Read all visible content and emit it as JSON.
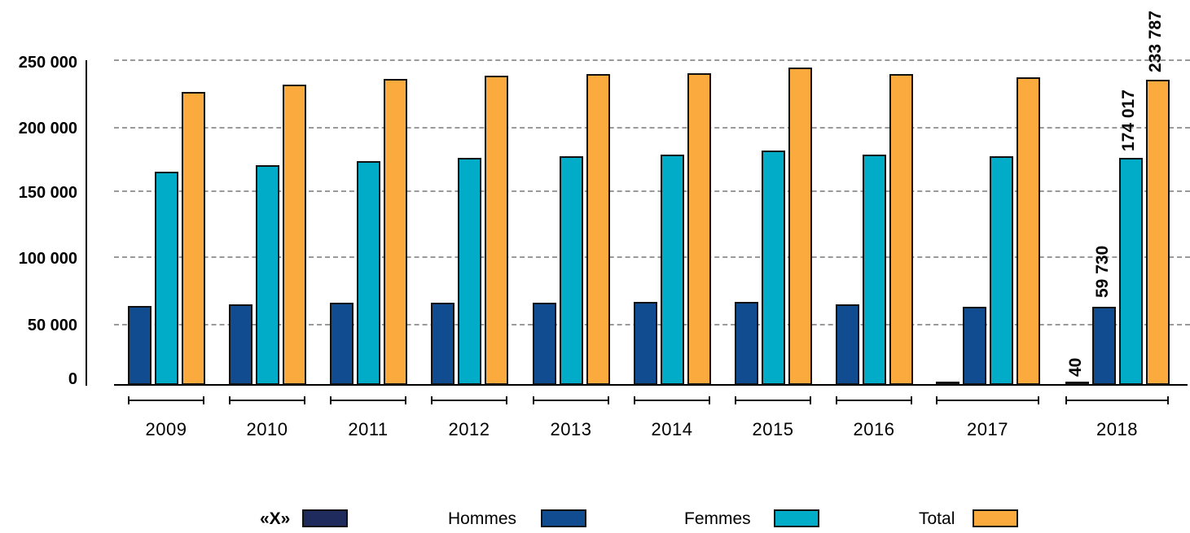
{
  "chart_data": {
    "type": "bar",
    "title": "",
    "xlabel": "",
    "ylabel": "",
    "ylim": [
      0,
      250000
    ],
    "y_ticks": [
      "0",
      "50 000",
      "100 000",
      "150 000",
      "200 000",
      "250 000"
    ],
    "grid": true,
    "legend_position": "bottom",
    "categories": [
      "2009",
      "2010",
      "2011",
      "2012",
      "2013",
      "2014",
      "2015",
      "2016",
      "2017",
      "2018"
    ],
    "series": [
      {
        "name": "«X»",
        "color": "#1f2b5c",
        "values": [
          null,
          null,
          null,
          null,
          null,
          null,
          null,
          null,
          1000,
          40
        ]
      },
      {
        "name": "Hommes",
        "color": "#104c8f",
        "values": [
          60500,
          61700,
          63000,
          63000,
          63000,
          63600,
          63600,
          61700,
          59900,
          59730
        ]
      },
      {
        "name": "Femmes",
        "color": "#00acc8",
        "values": [
          163300,
          168300,
          171400,
          173900,
          175200,
          176400,
          179600,
          176400,
          175200,
          174017
        ]
      },
      {
        "name": "Total",
        "color": "#fbab3d",
        "values": [
          224400,
          230000,
          234400,
          236900,
          238200,
          238800,
          243100,
          238200,
          235700,
          233787
        ]
      }
    ],
    "annotations": [
      {
        "category": "2018",
        "series": "«X»",
        "text": "40"
      },
      {
        "category": "2018",
        "series": "Hommes",
        "text": "59 730"
      },
      {
        "category": "2018",
        "series": "Femmes",
        "text": "174 017"
      },
      {
        "category": "2018",
        "series": "Total",
        "text": "233 787"
      }
    ]
  },
  "legend": [
    {
      "label": "«X»",
      "color": "#1f2b5c"
    },
    {
      "label": "Hommes",
      "color": "#104c8f"
    },
    {
      "label": "Femmes",
      "color": "#00acc8"
    },
    {
      "label": "Total",
      "color": "#fbab3d"
    }
  ]
}
